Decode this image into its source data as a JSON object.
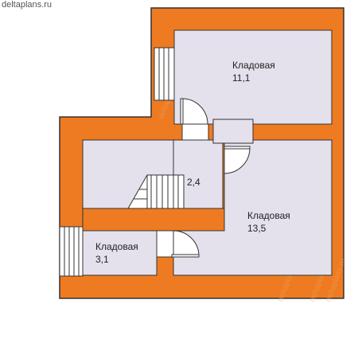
{
  "site": {
    "label": "deltaplans.ru"
  },
  "colors": {
    "wall": "#ee7b22",
    "room": "#e4e0ec",
    "outline": "#333333",
    "watermark": "#f5a868"
  },
  "rooms": [
    {
      "id": "storage-top",
      "name": "Кладовая",
      "area": "11,1"
    },
    {
      "id": "hall",
      "name": "",
      "area": "2,4"
    },
    {
      "id": "storage-big",
      "name": "Кладовая",
      "area": "13,5"
    },
    {
      "id": "storage-small",
      "name": "Кладовая",
      "area": "3,1"
    }
  ],
  "watermark": {
    "text": "deltaplans.ru"
  }
}
